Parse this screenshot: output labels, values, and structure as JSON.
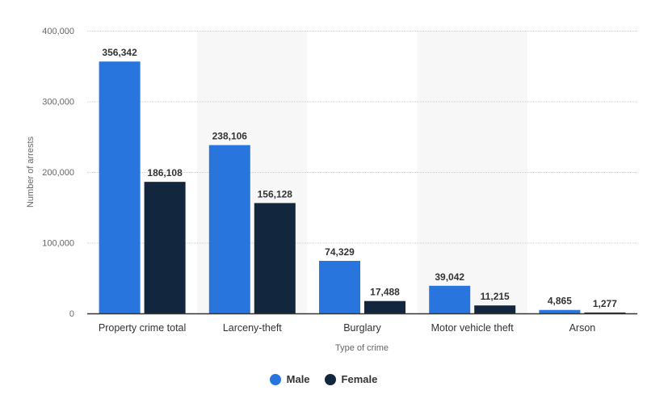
{
  "chart_data": {
    "type": "bar",
    "categories": [
      "Property crime total",
      "Larceny-theft",
      "Burglary",
      "Motor vehicle theft",
      "Arson"
    ],
    "series": [
      {
        "name": "Male",
        "color": "#2876dd",
        "values": [
          356342,
          238106,
          74329,
          39042,
          4865
        ],
        "labels": [
          "356,342",
          "238,106",
          "74,329",
          "39,042",
          "4,865"
        ]
      },
      {
        "name": "Female",
        "color": "#12263e",
        "values": [
          186108,
          156128,
          17488,
          11215,
          1277
        ],
        "labels": [
          "186,108",
          "156,128",
          "17,488",
          "11,215",
          "1,277"
        ]
      }
    ],
    "xlabel": "Type of crime",
    "ylabel": "Number of arrests",
    "ylim": [
      0,
      400000
    ],
    "yticks": [
      0,
      100000,
      200000,
      300000,
      400000
    ],
    "ytick_labels": [
      "0",
      "100,000",
      "200,000",
      "300,000",
      "400,000"
    ],
    "grid": true,
    "legend_position": "bottom-center"
  }
}
